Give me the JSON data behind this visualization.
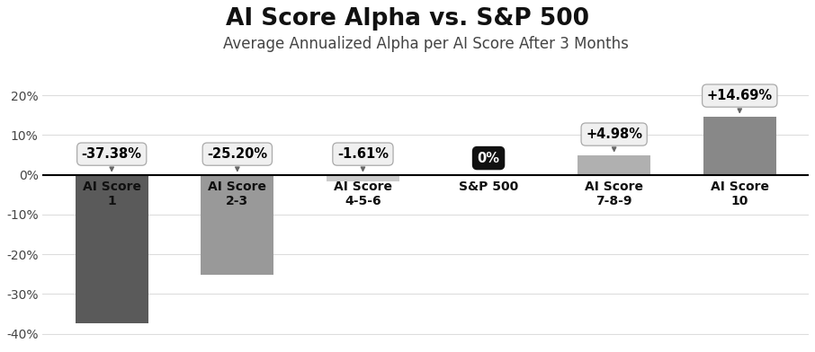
{
  "title": "AI Score Alpha vs. S&P 500",
  "subtitle": "Average Annualized Alpha per AI Score After 3 Months",
  "categories": [
    "AI Score\n1",
    "AI Score\n2-3",
    "AI Score\n4-5-6",
    "S&P 500",
    "AI Score\n7-8-9",
    "AI Score\n10"
  ],
  "values": [
    -37.38,
    -25.2,
    -1.61,
    0.0,
    4.98,
    14.69
  ],
  "labels": [
    "-37.38%",
    "-25.20%",
    "-1.61%",
    "0%",
    "+4.98%",
    "+14.69%"
  ],
  "bar_colors": [
    "#5a5a5a",
    "#999999",
    "#cccccc",
    "#111111",
    "#b0b0b0",
    "#888888"
  ],
  "label_bg_colors": [
    "#f0f0f0",
    "#f0f0f0",
    "#f0f0f0",
    "#111111",
    "#f0f0f0",
    "#f0f0f0"
  ],
  "label_text_colors": [
    "#000000",
    "#000000",
    "#000000",
    "#ffffff",
    "#000000",
    "#000000"
  ],
  "label_edge_colors": [
    "#aaaaaa",
    "#aaaaaa",
    "#aaaaaa",
    "#111111",
    "#aaaaaa",
    "#aaaaaa"
  ],
  "ylim": [
    -43,
    23
  ],
  "yticks": [
    -40,
    -30,
    -20,
    -10,
    0,
    10,
    20
  ],
  "ytick_labels": [
    "-40%",
    "-30%",
    "-20%",
    "-10%",
    "0%",
    "10%",
    "20%"
  ],
  "background_color": "#ffffff",
  "grid_color": "#dddddd",
  "title_fontsize": 19,
  "subtitle_fontsize": 12,
  "label_fontsize": 10.5,
  "axis_fontsize": 10,
  "category_fontsize": 10
}
